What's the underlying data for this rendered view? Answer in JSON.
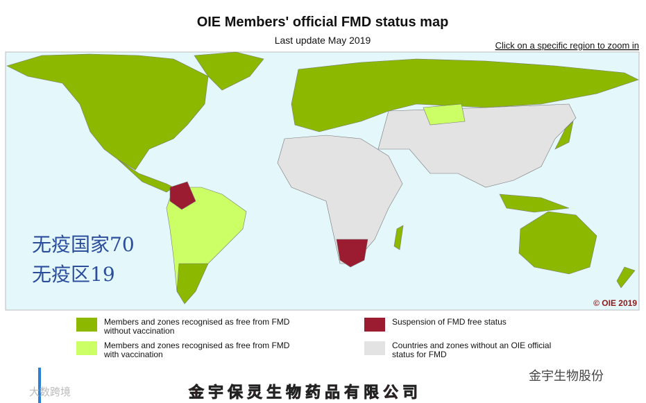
{
  "header": {
    "title": "OIE Members' official FMD status map",
    "subtitle": "Last update May 2019",
    "zoom_hint": "Click on a specific region to zoom in"
  },
  "map": {
    "copyright": "© OIE 2019",
    "overlay": [
      "无疫国家70",
      "无疫区19"
    ]
  },
  "legend": [
    {
      "color": "#8cb800",
      "lines": [
        "Members and zones recognised as free from FMD",
        "without vaccination"
      ]
    },
    {
      "color": "#ccff66",
      "lines": [
        "Members and zones recognised as free from FMD",
        "with vaccination"
      ]
    },
    {
      "color": "#9b1b30",
      "lines": [
        "Suspension of FMD free status"
      ]
    },
    {
      "color": "#e3e3e3",
      "lines": [
        "Countries and zones without an OIE official",
        "status for FMD"
      ]
    }
  ],
  "watermarks": {
    "left": "大数跨境",
    "right": "金宇生物股份",
    "footer": "金宇保灵生物药品有限公司"
  }
}
